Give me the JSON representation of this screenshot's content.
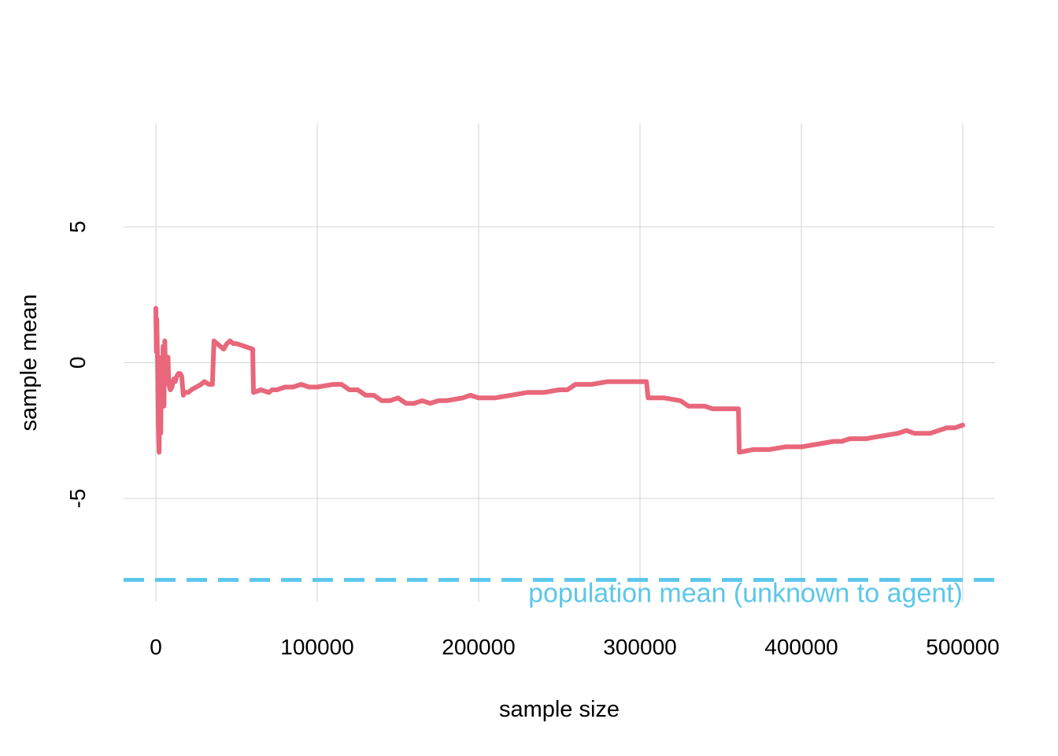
{
  "chart_data": {
    "type": "line",
    "xlabel": "sample size",
    "ylabel": "sample mean",
    "xlim": [
      -20000,
      520000
    ],
    "ylim": [
      -8.8,
      8.8
    ],
    "x_ticks": [
      0,
      100000,
      200000,
      300000,
      400000,
      500000
    ],
    "x_tick_labels": [
      "0",
      "100000",
      "200000",
      "300000",
      "400000",
      "500000"
    ],
    "y_ticks": [
      -5,
      0,
      5
    ],
    "y_tick_labels": [
      "-5",
      "0",
      "5"
    ],
    "grid": true,
    "legend": "none",
    "series": [
      {
        "color": "#e8677a",
        "x": [
          0,
          300,
          600,
          1000,
          1500,
          2000,
          2500,
          3000,
          3500,
          4000,
          4500,
          5000,
          5500,
          6000,
          6500,
          7000,
          7500,
          8000,
          9000,
          10000,
          11000,
          12000,
          13000,
          14000,
          15000,
          16000,
          17000,
          18000,
          20000,
          22000,
          25000,
          28000,
          30000,
          33000,
          35000,
          36000,
          38000,
          40000,
          42000,
          44000,
          46000,
          48000,
          50000,
          55000,
          60000,
          60500,
          65000,
          70000,
          72000,
          75000,
          80000,
          85000,
          90000,
          95000,
          100000,
          110000,
          115000,
          120000,
          125000,
          130000,
          135000,
          140000,
          145000,
          150000,
          155000,
          160000,
          165000,
          170000,
          175000,
          180000,
          190000,
          195000,
          200000,
          210000,
          220000,
          230000,
          240000,
          250000,
          255000,
          260000,
          265000,
          270000,
          280000,
          290000,
          300000,
          304000,
          305000,
          315000,
          325000,
          330000,
          340000,
          345000,
          350000,
          355000,
          361000,
          361500,
          370000,
          380000,
          390000,
          400000,
          410000,
          420000,
          425000,
          430000,
          440000,
          450000,
          460000,
          465000,
          470000,
          480000,
          485000,
          490000,
          495000,
          500000
        ],
        "y": [
          2.0,
          0.4,
          1.6,
          0.1,
          -2.2,
          -3.3,
          -1.0,
          -2.6,
          0.2,
          -0.8,
          0.6,
          -1.6,
          0.8,
          -0.3,
          -0.6,
          -0.1,
          0.2,
          -0.8,
          -1.0,
          -0.9,
          -0.6,
          -0.7,
          -0.5,
          -0.4,
          -0.4,
          -0.5,
          -1.2,
          -1.1,
          -1.1,
          -1.0,
          -0.9,
          -0.8,
          -0.7,
          -0.8,
          -0.8,
          0.8,
          0.7,
          0.6,
          0.5,
          0.7,
          0.8,
          0.7,
          0.7,
          0.6,
          0.5,
          -1.1,
          -1.0,
          -1.1,
          -1.0,
          -1.0,
          -0.9,
          -0.9,
          -0.8,
          -0.9,
          -0.9,
          -0.8,
          -0.8,
          -1.0,
          -1.0,
          -1.2,
          -1.2,
          -1.4,
          -1.4,
          -1.3,
          -1.5,
          -1.5,
          -1.4,
          -1.5,
          -1.4,
          -1.4,
          -1.3,
          -1.2,
          -1.3,
          -1.3,
          -1.2,
          -1.1,
          -1.1,
          -1.0,
          -1.0,
          -0.8,
          -0.8,
          -0.8,
          -0.7,
          -0.7,
          -0.7,
          -0.7,
          -1.3,
          -1.3,
          -1.4,
          -1.6,
          -1.6,
          -1.7,
          -1.7,
          -1.7,
          -1.7,
          -3.3,
          -3.2,
          -3.2,
          -3.1,
          -3.1,
          -3.0,
          -2.9,
          -2.9,
          -2.8,
          -2.8,
          -2.7,
          -2.6,
          -2.5,
          -2.6,
          -2.6,
          -2.5,
          -2.4,
          -2.4,
          -2.3
        ]
      }
    ],
    "reference_line": {
      "y": -8,
      "style": "dashed",
      "color": "#5bc7ea",
      "label": "population mean (unknown to agent)"
    }
  }
}
